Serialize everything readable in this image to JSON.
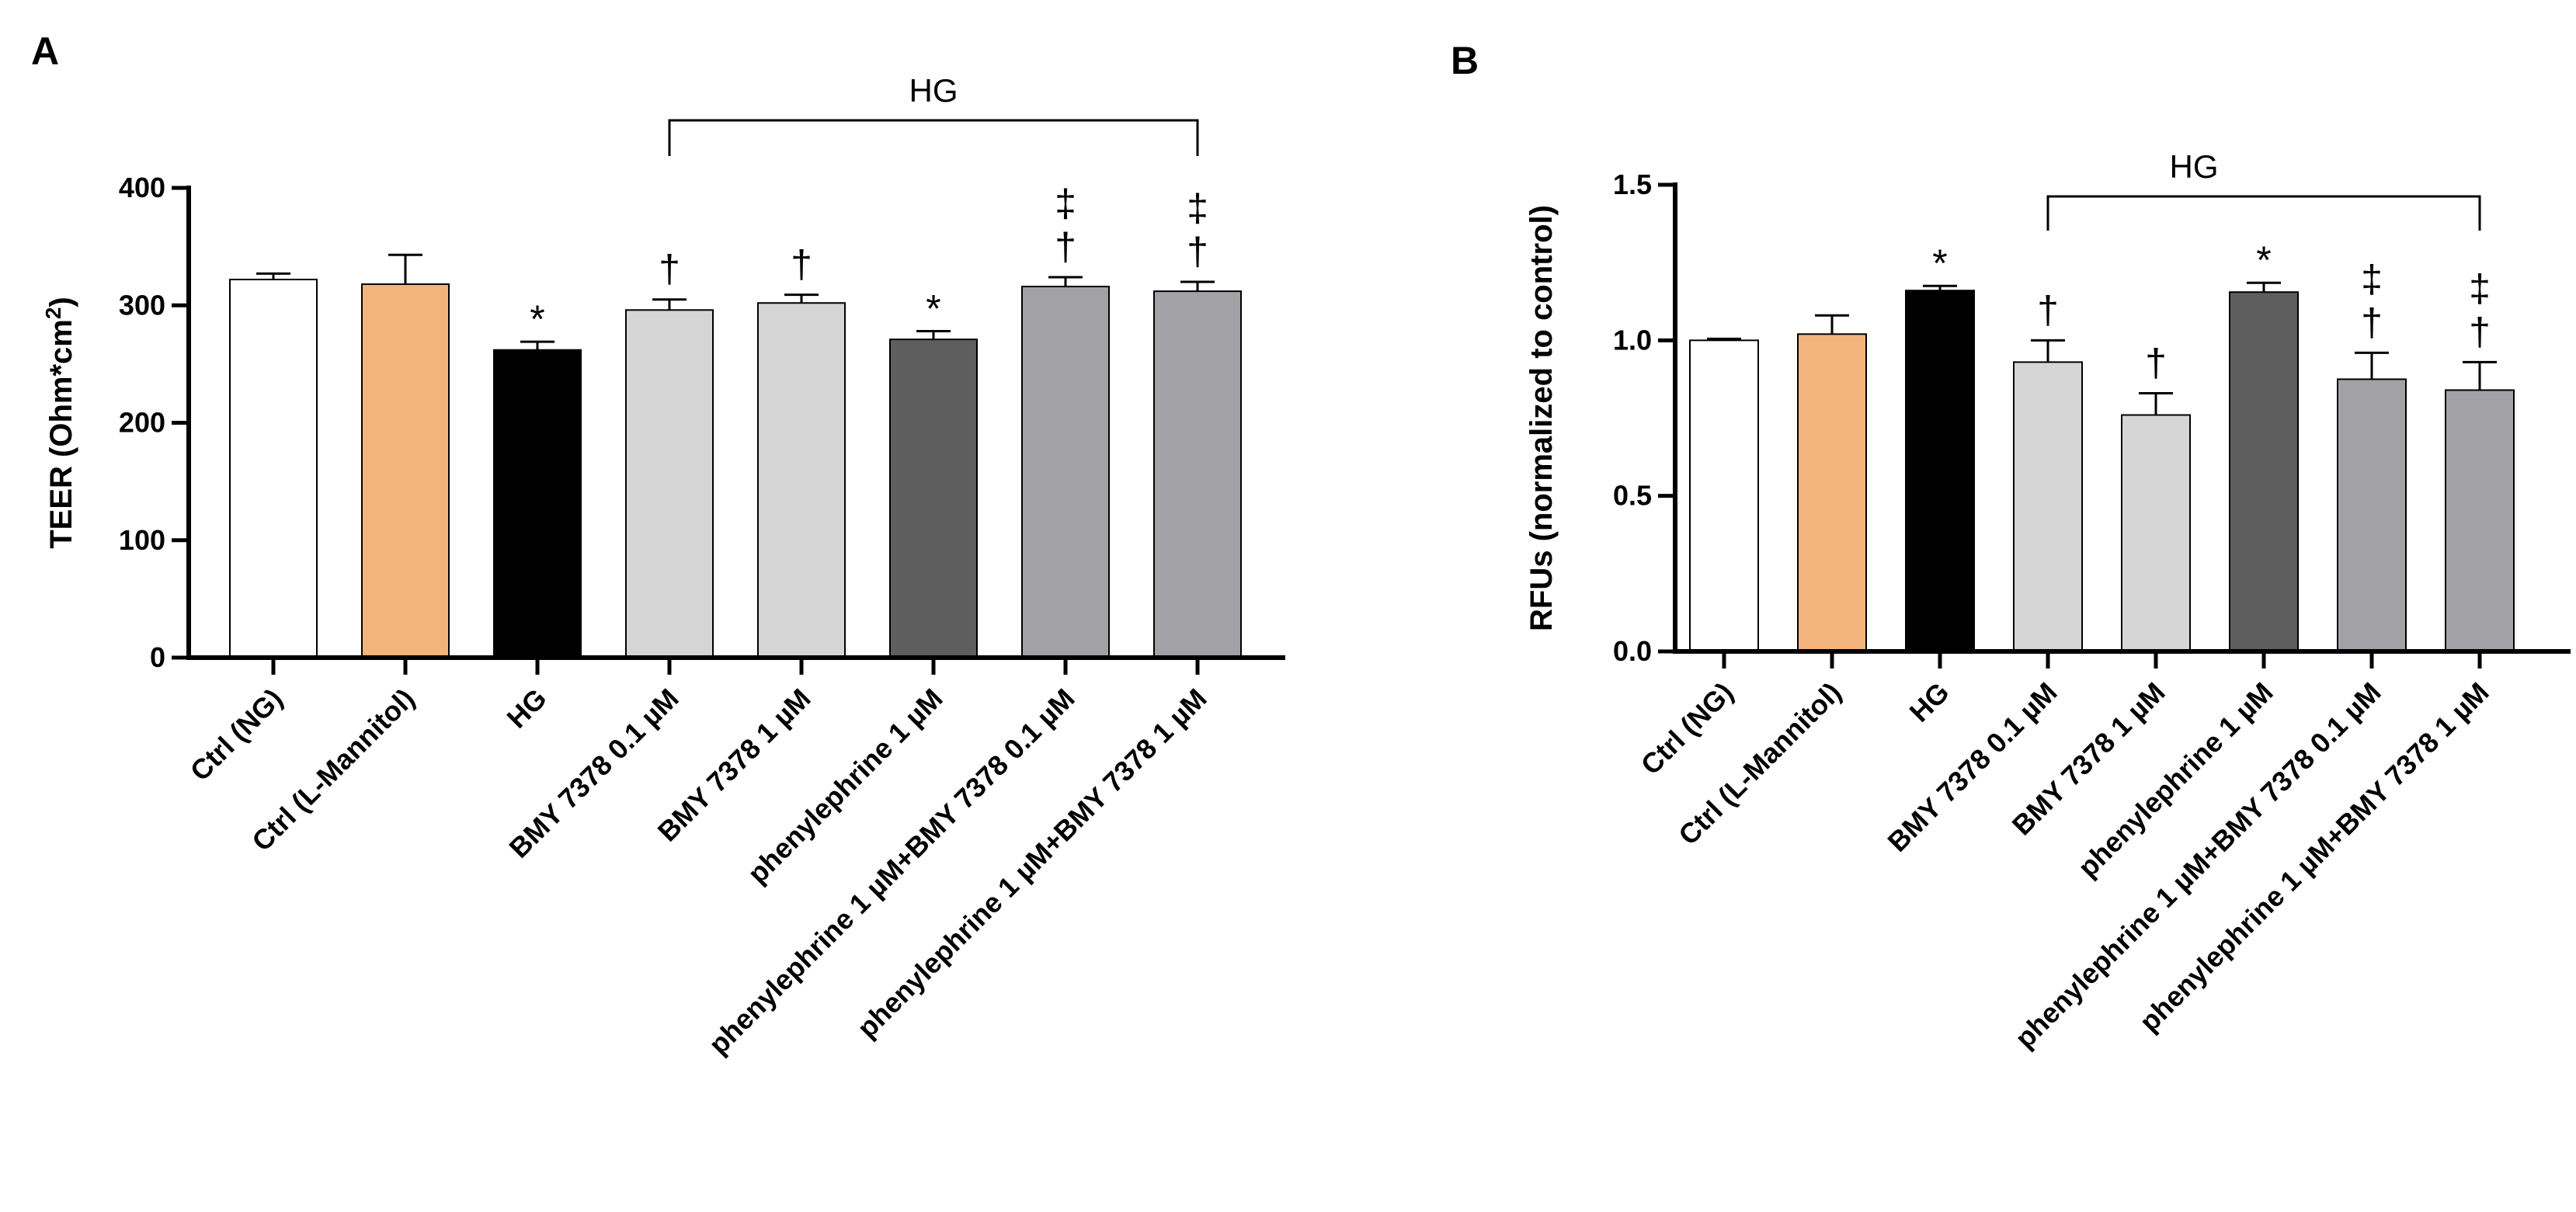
{
  "chart_data": [
    {
      "panel": "A",
      "type": "bar",
      "ylabel": "TEER (Ohm*cm",
      "ylabel_sup": "2",
      "ylabel_end": ")",
      "ylim": [
        0,
        400
      ],
      "yticks": [
        "0",
        "100",
        "200",
        "300",
        "400"
      ],
      "categories": [
        "Ctrl (NG)",
        "Ctrl (L-Mannitol)",
        "HG",
        "BMY 7378 0.1 µM",
        "BMY 7378 1 µM",
        "phenylephrine 1 µM",
        "phenylephrine 1 µM+BMY 7378 0.1 µM",
        "phenylephrine 1 µM+BMY 7378 1 µM"
      ],
      "values": [
        322,
        318,
        262,
        296,
        302,
        271,
        316,
        312
      ],
      "errors": [
        5,
        25,
        7,
        9,
        7,
        7,
        8,
        8
      ],
      "colors": [
        "#ffffff",
        "#f2b47a",
        "#000000",
        "#d5d5d5",
        "#d5d5d5",
        "#5e5e5e",
        "#a2a2a6",
        "#a2a2a6"
      ],
      "significance": [
        "",
        "",
        "*",
        "†",
        "†",
        "*",
        "‡\n†",
        "‡\n†"
      ],
      "bracket": {
        "label": "HG",
        "from_index": 3,
        "to_index": 7
      }
    },
    {
      "panel": "B",
      "type": "bar",
      "ylabel": "RFUs (normalized to control)",
      "ylim": [
        0,
        1.5
      ],
      "yticks": [
        "0.0",
        "0.5",
        "1.0",
        "1.5"
      ],
      "categories": [
        "Ctrl (NG)",
        "Ctrl (L-Mannitol)",
        "HG",
        "BMY 7378 0.1 µM",
        "BMY 7378 1 µM",
        "phenylephrine 1 µM",
        "phenylephrine 1 µM+BMY 7378 0.1 µM",
        "phenylephrine 1 µM+BMY 7378 1 µM"
      ],
      "values": [
        1.0,
        1.02,
        1.16,
        0.93,
        0.76,
        1.155,
        0.875,
        0.84
      ],
      "errors": [
        0.005,
        0.06,
        0.015,
        0.07,
        0.07,
        0.03,
        0.085,
        0.09
      ],
      "colors": [
        "#ffffff",
        "#f2b47a",
        "#000000",
        "#d5d5d5",
        "#d5d5d5",
        "#5e5e5e",
        "#a2a2a6",
        "#a2a2a6"
      ],
      "significance": [
        "",
        "",
        "*",
        "†",
        "†",
        "*",
        "‡\n†",
        "‡\n†"
      ],
      "bracket": {
        "label": "HG",
        "from_index": 3,
        "to_index": 7
      }
    }
  ]
}
